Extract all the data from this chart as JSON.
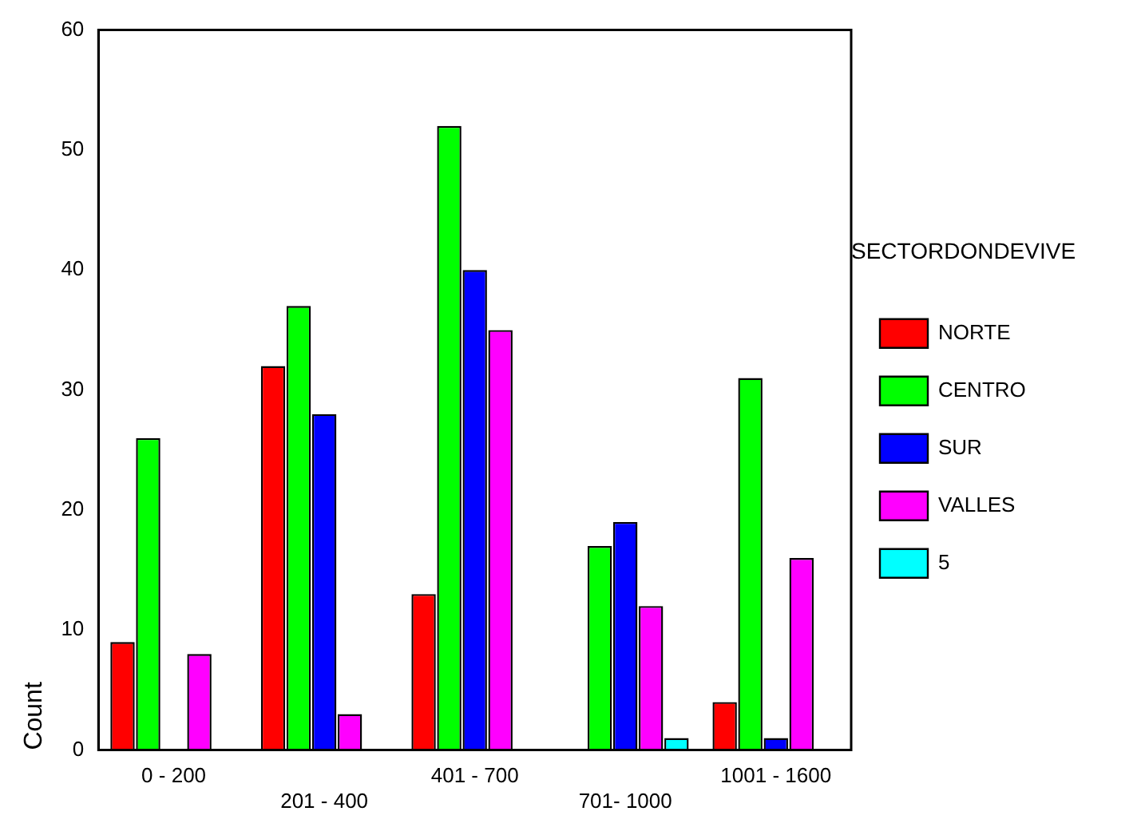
{
  "chart_data": {
    "type": "bar",
    "ylabel": "Count",
    "legend_title": "SECTORDONDEVIVE",
    "legend": "right",
    "categories": [
      "0 - 200",
      "201 - 400",
      "401 - 700",
      "701- 1000",
      "1001 - 1600"
    ],
    "series": [
      {
        "name": "NORTE",
        "color": "#ff0000",
        "values": [
          9,
          32,
          13,
          null,
          4
        ]
      },
      {
        "name": "CENTRO",
        "color": "#00ff00",
        "values": [
          26,
          37,
          52,
          17,
          31
        ]
      },
      {
        "name": "SUR",
        "color": "#0000ff",
        "values": [
          null,
          28,
          40,
          19,
          1
        ]
      },
      {
        "name": "VALLES",
        "color": "#ff00ff",
        "values": [
          8,
          3,
          35,
          12,
          16
        ]
      },
      {
        "name": "5",
        "color": "#00ffff",
        "values": [
          null,
          null,
          null,
          1,
          null
        ]
      }
    ],
    "ylim": [
      0,
      60
    ],
    "yticks": [
      0,
      10,
      20,
      30,
      40,
      50,
      60
    ],
    "grid": false
  }
}
